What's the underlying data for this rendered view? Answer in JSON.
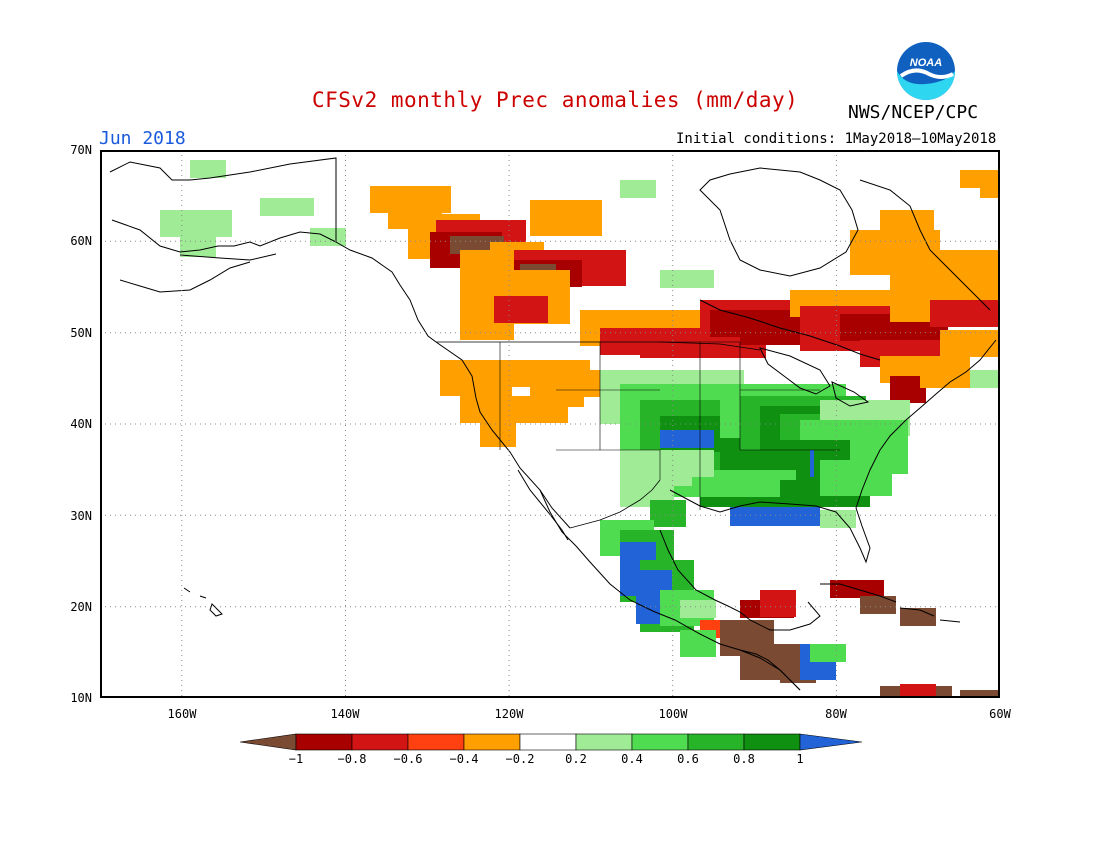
{
  "header": {
    "title": "CFSv2 monthly Prec anomalies (mm/day)",
    "agency": "NWS/NCEP/CPC",
    "month": "Jun 2018",
    "initial_conditions": "Initial conditions: 1May2018–10May2018",
    "logo_text": "NOAA"
  },
  "colors": {
    "title": "#cc0000",
    "month": "#1a5adc",
    "frame": "#000000",
    "grid": "#888888",
    "coast": "#000000",
    "logo_blue": "#1060c0",
    "logo_cyan": "#2fd6f0"
  },
  "map": {
    "lat_labels": [
      "70N",
      "60N",
      "50N",
      "40N",
      "30N",
      "20N",
      "10N"
    ],
    "lon_labels": [
      "160W",
      "140W",
      "120W",
      "100W",
      "80W",
      "60W"
    ]
  },
  "legend": {
    "tick_labels": [
      "-1",
      "-0.8",
      "-0.6",
      "-0.4",
      "-0.2",
      "0.2",
      "0.4",
      "0.6",
      "0.8",
      "1"
    ],
    "bins": [
      {
        "range": "< -1",
        "color": "#7b4a32"
      },
      {
        "range": "-1 to -0.8",
        "color": "#a80000"
      },
      {
        "range": "-0.8 to -0.6",
        "color": "#d21414"
      },
      {
        "range": "-0.6 to -0.4",
        "color": "#ff4010"
      },
      {
        "range": "-0.4 to -0.2",
        "color": "#ffa000"
      },
      {
        "range": "-0.2 to 0.2",
        "color": "#ffffff"
      },
      {
        "range": "0.2 to 0.4",
        "color": "#a0ec96"
      },
      {
        "range": "0.4 to 0.6",
        "color": "#50dc50"
      },
      {
        "range": "0.6 to 0.8",
        "color": "#28b428"
      },
      {
        "range": "0.8 to 1",
        "color": "#109010"
      },
      {
        "range": "> 1",
        "color": "#2264d8"
      }
    ]
  }
}
